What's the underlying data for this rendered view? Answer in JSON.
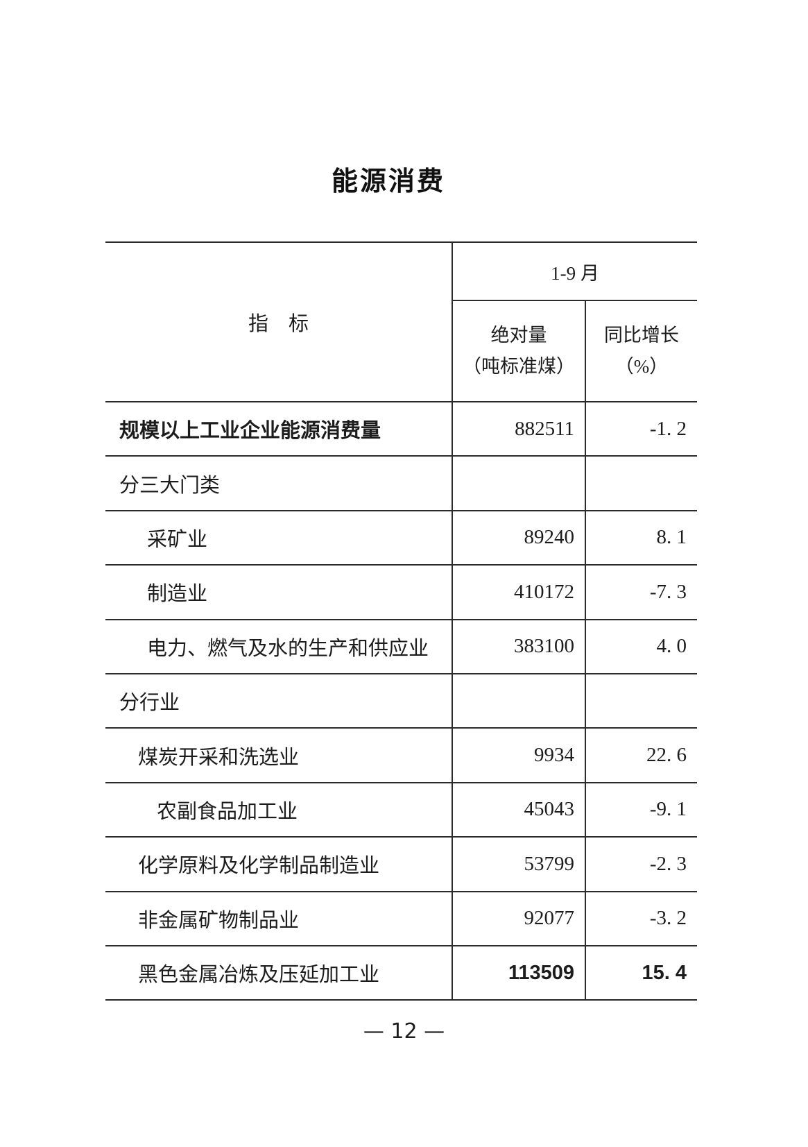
{
  "page": {
    "title": "能源消费",
    "footer_page_number": "— 12 —"
  },
  "table": {
    "header": {
      "indicator_label": "指　标",
      "period_label": "1-9 月",
      "absolute_line1": "绝对量",
      "absolute_line2": "（吨标准煤）",
      "growth_line1": "同比增长",
      "growth_line2": "（%）"
    },
    "rows": [
      {
        "label": "规模以上工业企业能源消费量",
        "absolute": "882511",
        "growth": "-1. 2"
      },
      {
        "label": "分三大门类",
        "absolute": "",
        "growth": ""
      },
      {
        "label": "采矿业",
        "absolute": "89240",
        "growth": "8. 1"
      },
      {
        "label": "制造业",
        "absolute": "410172",
        "growth": "-7. 3"
      },
      {
        "label": "电力、燃气及水的生产和供应业",
        "absolute": "383100",
        "growth": "4. 0"
      },
      {
        "label": "分行业",
        "absolute": "",
        "growth": ""
      },
      {
        "label": "煤炭开采和洗选业",
        "absolute": "9934",
        "growth": "22. 6"
      },
      {
        "label": "农副食品加工业",
        "absolute": "45043",
        "growth": "-9. 1"
      },
      {
        "label": "化学原料及化学制品制造业",
        "absolute": "53799",
        "growth": "-2. 3"
      },
      {
        "label": "非金属矿物制品业",
        "absolute": "92077",
        "growth": "-3. 2"
      },
      {
        "label": "黑色金属冶炼及压延加工业",
        "absolute": "113509",
        "growth": "15. 4"
      }
    ]
  }
}
